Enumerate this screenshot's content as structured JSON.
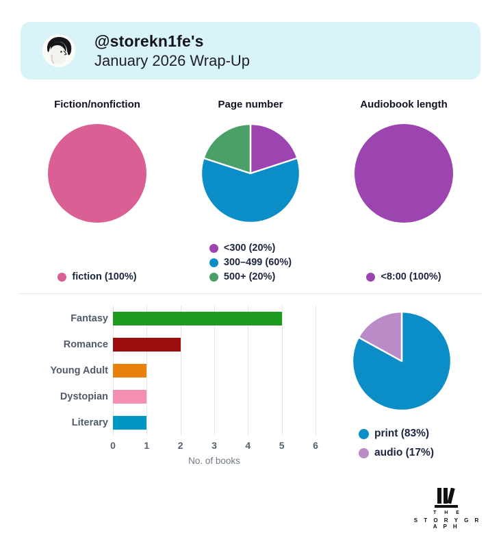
{
  "header": {
    "username_line": "@storekn1fe's",
    "subtitle_line": "January 2026 Wrap-Up",
    "background_color": "#d9f4f9"
  },
  "chart_data": [
    {
      "id": "fiction_nonfiction",
      "type": "pie",
      "title": "Fiction/nonfiction",
      "legend_position": "bottom",
      "slices": [
        {
          "label": "fiction",
          "pct": 100,
          "color": "#d95f94",
          "legend": "fiction (100%)"
        }
      ]
    },
    {
      "id": "page_number",
      "type": "pie",
      "title": "Page number",
      "legend_position": "bottom",
      "slices": [
        {
          "label": "<300",
          "pct": 20,
          "color": "#9c44b0",
          "legend": "<300 (20%)"
        },
        {
          "label": "300-499",
          "pct": 60,
          "color": "#0b8dc7",
          "legend": "300–499 (60%)"
        },
        {
          "label": "500+",
          "pct": 20,
          "color": "#4aa066",
          "legend": "500+ (20%)"
        }
      ]
    },
    {
      "id": "audiobook_length",
      "type": "pie",
      "title": "Audiobook length",
      "legend_position": "bottom",
      "slices": [
        {
          "label": "<8:00",
          "pct": 100,
          "color": "#9c44b0",
          "legend": "<8:00 (100%)"
        }
      ]
    },
    {
      "id": "top_genres",
      "type": "bar",
      "orientation": "horizontal",
      "categories": [
        "Fantasy",
        "Romance",
        "Young Adult",
        "Dystopian",
        "Literary"
      ],
      "values": [
        5,
        2,
        1,
        1,
        1
      ],
      "bar_colors": [
        "#1e9b1e",
        "#9c0e0e",
        "#e8820c",
        "#f48fb1",
        "#0095c2"
      ],
      "xlabel": "No. of books",
      "xticks": [
        "0",
        "1",
        "2",
        "3",
        "4",
        "5",
        "6"
      ],
      "xlim": [
        0,
        6
      ],
      "grid": true
    },
    {
      "id": "format",
      "type": "pie",
      "legend_position": "bottom",
      "slices": [
        {
          "label": "print",
          "pct": 83,
          "color": "#0b8dc7",
          "legend": "print (83%)"
        },
        {
          "label": "audio",
          "pct": 17,
          "color": "#b98cc7",
          "legend": "audio (17%)"
        }
      ]
    }
  ],
  "footer_logo": {
    "line1": "T H E",
    "line2": "S T O R Y G R A P H"
  }
}
